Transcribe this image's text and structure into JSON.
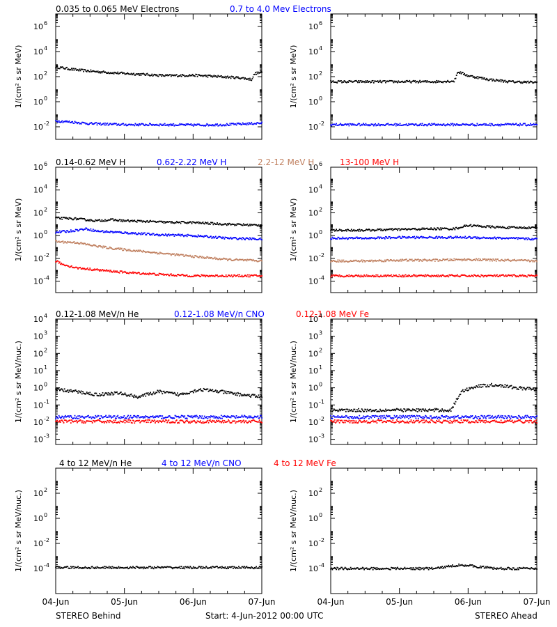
{
  "footer": {
    "left": "STEREO Behind",
    "center": "Start:  4-Jun-2012 00:00 UTC",
    "right": "STEREO Ahead"
  },
  "colors": {
    "black": "#000000",
    "blue": "#0000ff",
    "tan": "#c08060",
    "red": "#ff0000"
  },
  "chart_data": [
    {
      "type": "scatter",
      "row": 1,
      "titles": [
        {
          "text": "0.035 to 0.065 MeV Electrons",
          "color": "#000000"
        },
        {
          "text": "0.7 to 4.0 Mev Electrons",
          "color": "#0000ff"
        }
      ],
      "ylabel": "1/(cm² s sr MeV)",
      "yscale": "log",
      "ylim": [
        0.001,
        10000000
      ],
      "yticks": [
        {
          "exp": "6",
          "value": 1000000
        },
        {
          "exp": "4",
          "value": 10000
        },
        {
          "exp": "2",
          "value": 100
        },
        {
          "exp": "0",
          "value": 1
        },
        {
          "exp": "-2",
          "value": 0.01
        }
      ],
      "xlim": [
        0,
        3
      ],
      "xticks": [
        "04-Jun",
        "05-Jun",
        "06-Jun",
        "07-Jun"
      ],
      "panels": [
        {
          "spacecraft": "STEREO Behind",
          "series": [
            {
              "color": "#000000",
              "x": [
                0,
                0.3,
                0.6,
                1.0,
                1.3,
                1.6,
                2.0,
                2.4,
                2.7,
                2.85,
                2.9,
                3.0
              ],
              "y": [
                600,
                350,
                250,
                180,
                150,
                120,
                130,
                100,
                80,
                60,
                180,
                220
              ]
            },
            {
              "color": "#0000ff",
              "x": [
                0,
                0.2,
                0.5,
                1.0,
                1.5,
                2.0,
                2.5,
                3.0
              ],
              "y": [
                0.03,
                0.025,
                0.018,
                0.015,
                0.015,
                0.014,
                0.015,
                0.02
              ]
            }
          ]
        },
        {
          "spacecraft": "STEREO Ahead",
          "series": [
            {
              "color": "#000000",
              "x": [
                0,
                0.5,
                1.0,
                1.5,
                1.8,
                1.85,
                2.0,
                2.3,
                2.6,
                3.0
              ],
              "y": [
                40,
                40,
                40,
                40,
                45,
                250,
                120,
                60,
                40,
                35
              ]
            },
            {
              "color": "#0000ff",
              "x": [
                0,
                0.5,
                1.0,
                1.5,
                2.0,
                2.5,
                3.0
              ],
              "y": [
                0.015,
                0.015,
                0.015,
                0.015,
                0.015,
                0.015,
                0.015
              ]
            }
          ]
        }
      ]
    },
    {
      "type": "scatter",
      "row": 2,
      "titles": [
        {
          "text": "0.14-0.62 MeV H",
          "color": "#000000"
        },
        {
          "text": "0.62-2.22 MeV H",
          "color": "#0000ff"
        },
        {
          "text": "2.2-12 MeV H",
          "color": "#c08060"
        },
        {
          "text": "13-100 MeV H",
          "color": "#ff0000"
        }
      ],
      "ylabel": "1/(cm² s sr MeV)",
      "yscale": "log",
      "ylim": [
        1e-05,
        1000000
      ],
      "yticks": [
        {
          "exp": "6",
          "value": 1000000
        },
        {
          "exp": "4",
          "value": 10000
        },
        {
          "exp": "2",
          "value": 100
        },
        {
          "exp": "0",
          "value": 1
        },
        {
          "exp": "-2",
          "value": 0.01
        },
        {
          "exp": "-4",
          "value": 0.0001
        }
      ],
      "xlim": [
        0,
        3
      ],
      "xticks": [
        "04-Jun",
        "05-Jun",
        "06-Jun",
        "07-Jun"
      ],
      "panels": [
        {
          "spacecraft": "STEREO Behind",
          "series": [
            {
              "color": "#000000",
              "x": [
                0,
                0.3,
                0.6,
                0.8,
                1.0,
                1.3,
                1.6,
                2.0,
                2.5,
                3.0
              ],
              "y": [
                35,
                30,
                20,
                25,
                20,
                18,
                15,
                14,
                10,
                8
              ]
            },
            {
              "color": "#0000ff",
              "x": [
                0,
                0.2,
                0.45,
                0.6,
                1.0,
                1.5,
                2.0,
                2.5,
                3.0
              ],
              "y": [
                2,
                2.5,
                4,
                2.5,
                1.8,
                1.2,
                1,
                0.6,
                0.5
              ]
            },
            {
              "color": "#c08060",
              "x": [
                0,
                0.3,
                0.5,
                0.8,
                1.0,
                1.5,
                2.0,
                2.5,
                3.0
              ],
              "y": [
                0.3,
                0.25,
                0.15,
                0.08,
                0.06,
                0.03,
                0.015,
                0.008,
                0.006
              ]
            },
            {
              "color": "#ff0000",
              "x": [
                0,
                0.1,
                0.3,
                0.6,
                1.0,
                1.5,
                2.0,
                2.5,
                3.0
              ],
              "y": [
                0.006,
                0.003,
                0.0015,
                0.001,
                0.0006,
                0.0004,
                0.0003,
                0.0003,
                0.0003
              ]
            }
          ]
        },
        {
          "spacecraft": "STEREO Ahead",
          "series": [
            {
              "color": "#000000",
              "x": [
                0,
                0.5,
                1.0,
                1.5,
                1.8,
                2.0,
                2.3,
                2.6,
                3.0
              ],
              "y": [
                3,
                3,
                3.5,
                4,
                4,
                8,
                6,
                5,
                5
              ]
            },
            {
              "color": "#0000ff",
              "x": [
                0,
                0.5,
                1.0,
                1.5,
                2.0,
                2.5,
                3.0
              ],
              "y": [
                0.6,
                0.6,
                0.7,
                0.7,
                0.7,
                0.6,
                0.5
              ]
            },
            {
              "color": "#c08060",
              "x": [
                0,
                0.5,
                1.0,
                1.5,
                2.0,
                2.5,
                3.0
              ],
              "y": [
                0.006,
                0.006,
                0.007,
                0.007,
                0.008,
                0.007,
                0.006
              ]
            },
            {
              "color": "#ff0000",
              "x": [
                0,
                0.5,
                1.0,
                1.5,
                2.0,
                2.5,
                3.0
              ],
              "y": [
                0.0003,
                0.0003,
                0.0003,
                0.0003,
                0.0003,
                0.0003,
                0.0003
              ]
            }
          ]
        }
      ]
    },
    {
      "type": "scatter",
      "row": 3,
      "titles": [
        {
          "text": "0.12-1.08 MeV/n He",
          "color": "#000000"
        },
        {
          "text": "0.12-1.08 MeV/n CNO",
          "color": "#0000ff"
        },
        {
          "text": "0.12-1.08 MeV Fe",
          "color": "#ff0000"
        }
      ],
      "ylabel": "1/(cm² s sr MeV/nuc.)",
      "yscale": "log",
      "ylim": [
        0.0005,
        10000
      ],
      "yticks": [
        {
          "exp": "4",
          "value": 10000
        },
        {
          "exp": "3",
          "value": 1000
        },
        {
          "exp": "2",
          "value": 100
        },
        {
          "exp": "1",
          "value": 10
        },
        {
          "exp": "0",
          "value": 1
        },
        {
          "exp": "-1",
          "value": 0.1
        },
        {
          "exp": "-2",
          "value": 0.01
        },
        {
          "exp": "-3",
          "value": 0.001
        }
      ],
      "xlim": [
        0,
        3
      ],
      "xticks": [
        "04-Jun",
        "05-Jun",
        "06-Jun",
        "07-Jun"
      ],
      "panels": [
        {
          "spacecraft": "STEREO Behind",
          "series": [
            {
              "color": "#000000",
              "x": [
                0,
                0.3,
                0.6,
                0.9,
                1.2,
                1.5,
                1.8,
                2.1,
                2.4,
                2.7,
                3.0
              ],
              "y": [
                0.8,
                0.6,
                0.4,
                0.5,
                0.3,
                0.6,
                0.4,
                0.8,
                0.6,
                0.4,
                0.3
              ]
            },
            {
              "color": "#0000ff",
              "x": [
                0,
                0.5,
                1.0,
                1.5,
                2.0,
                2.5,
                3.0
              ],
              "y": [
                0.02,
                0.02,
                0.02,
                0.02,
                0.02,
                0.02,
                0.02
              ]
            },
            {
              "color": "#ff0000",
              "x": [
                0,
                0.5,
                1.0,
                1.5,
                2.0,
                2.5,
                3.0
              ],
              "y": [
                0.011,
                0.011,
                0.011,
                0.011,
                0.011,
                0.011,
                0.011
              ]
            }
          ]
        },
        {
          "spacecraft": "STEREO Ahead",
          "series": [
            {
              "color": "#000000",
              "x": [
                0,
                0.5,
                1.0,
                1.5,
                1.75,
                1.9,
                2.1,
                2.4,
                2.7,
                3.0
              ],
              "y": [
                0.05,
                0.05,
                0.05,
                0.05,
                0.05,
                0.6,
                1.2,
                1.5,
                1.0,
                0.8
              ]
            },
            {
              "color": "#0000ff",
              "x": [
                0,
                0.5,
                1.0,
                1.5,
                2.0,
                2.5,
                3.0
              ],
              "y": [
                0.02,
                0.02,
                0.02,
                0.02,
                0.02,
                0.02,
                0.02
              ]
            },
            {
              "color": "#ff0000",
              "x": [
                0,
                0.5,
                1.0,
                1.5,
                2.0,
                2.5,
                3.0
              ],
              "y": [
                0.011,
                0.011,
                0.011,
                0.011,
                0.011,
                0.011,
                0.011
              ]
            }
          ]
        }
      ]
    },
    {
      "type": "scatter",
      "row": 4,
      "titles": [
        {
          "text": "4 to 12 MeV/n He",
          "color": "#000000"
        },
        {
          "text": "4 to 12 MeV/n CNO",
          "color": "#0000ff"
        },
        {
          "text": "4 to 12 MeV Fe",
          "color": "#ff0000"
        }
      ],
      "ylabel": "1/(cm² s sr MeV/nuc.)",
      "yscale": "log",
      "ylim": [
        1e-06,
        10000
      ],
      "yticks": [
        {
          "exp": "2",
          "value": 100
        },
        {
          "exp": "0",
          "value": 1
        },
        {
          "exp": "-2",
          "value": 0.01
        },
        {
          "exp": "-4",
          "value": 0.0001
        }
      ],
      "xlim": [
        0,
        3
      ],
      "xticks": [
        "04-Jun",
        "05-Jun",
        "06-Jun",
        "07-Jun"
      ],
      "panels": [
        {
          "spacecraft": "STEREO Behind",
          "series": [
            {
              "color": "#000000",
              "x": [
                0,
                0.2,
                0.4,
                0.8,
                1.2,
                1.6,
                2.0,
                2.4,
                2.8
              ],
              "y": [
                0.00012,
                0.00012,
                0.00012,
                0.00012,
                0.00012,
                0.00012,
                0.00012,
                0.00012,
                0.00012
              ]
            }
          ]
        },
        {
          "spacecraft": "STEREO Ahead",
          "series": [
            {
              "color": "#000000",
              "x": [
                0,
                0.4,
                0.8,
                1.2,
                1.5,
                1.9,
                2.1,
                2.4,
                2.8
              ],
              "y": [
                0.0001,
                0.0001,
                0.0001,
                0.0001,
                0.0001,
                0.0002,
                0.00015,
                0.0001,
                0.0001
              ]
            }
          ]
        }
      ]
    }
  ]
}
